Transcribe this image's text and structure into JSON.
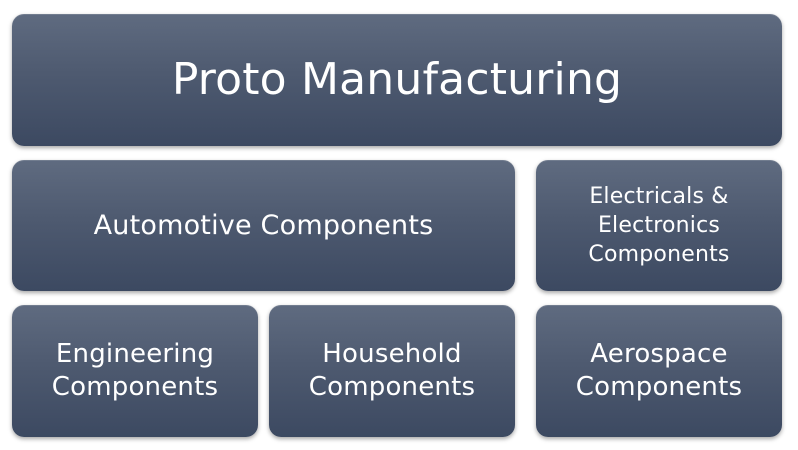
{
  "diagram": {
    "title": "Proto Manufacturing",
    "categories": {
      "automotive": "Automotive Components",
      "electricals": "Electricals &\nElectronics\nComponents",
      "engineering": "Engineering\nComponents",
      "household": "Household\nComponents",
      "aerospace": "Aerospace\nComponents"
    }
  },
  "colors": {
    "tile_top": "#5f6b80",
    "tile_bottom": "#3c4961",
    "text": "#ffffff",
    "background": "#ffffff"
  }
}
